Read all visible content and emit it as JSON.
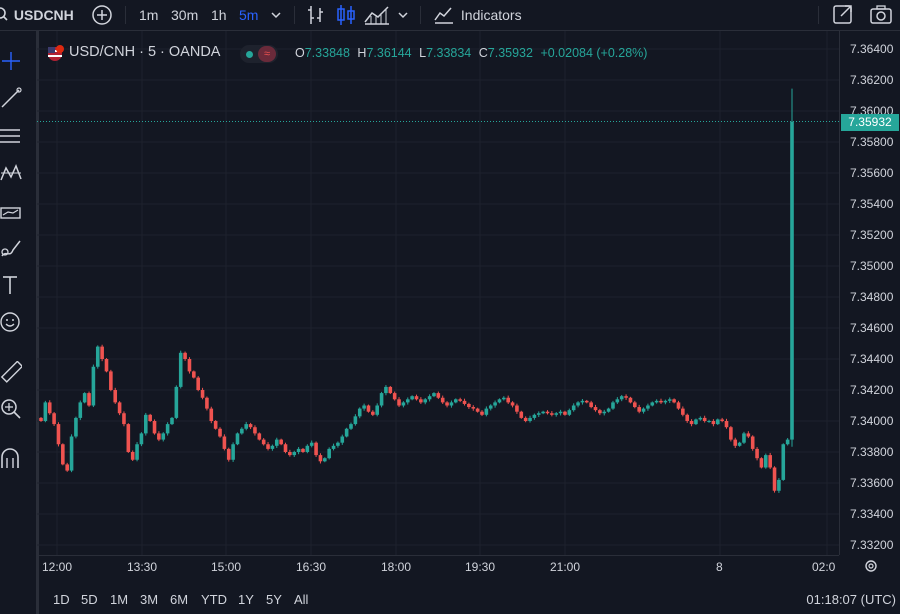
{
  "colors": {
    "up": "#26a69a",
    "down": "#ef5350",
    "bg": "#131722",
    "grid": "#1e222d",
    "text": "#d1d4dc",
    "accent": "#2962ff"
  },
  "toolbar": {
    "symbol": "USDCNH",
    "intervals": [
      {
        "label": "1m"
      },
      {
        "label": "30m"
      },
      {
        "label": "1h"
      },
      {
        "label": "5m",
        "active": true
      }
    ],
    "indicators_label": "Indicators",
    "icons": [
      "search-icon",
      "add-symbol-icon",
      "chevron-down-icon",
      "bar-style-icon",
      "candle-style-icon",
      "area-style-icon",
      "indicators-icon",
      "fullscreen-icon",
      "camera-icon"
    ]
  },
  "left_tools": [
    "crosshair-icon",
    "trend-line-icon",
    "horizontal-lines-icon",
    "pattern-icon",
    "forecast-icon",
    "brush-icon",
    "text-icon",
    "emoji-icon",
    "ruler-icon",
    "zoom-in-icon",
    "magnet-icon"
  ],
  "legend": {
    "symbol": "USD/CNH · 5 · OANDA",
    "open_label": "O",
    "open": "7.33848",
    "high_label": "H",
    "high": "7.36144",
    "low_label": "L",
    "low": "7.33834",
    "close_label": "C",
    "close": "7.35932",
    "change": "+0.02084 (+0.28%)"
  },
  "price_axis": {
    "labels": [
      "7.36400",
      "7.36200",
      "7.36000",
      "7.35800",
      "7.35600",
      "7.35400",
      "7.35200",
      "7.35000",
      "7.34800",
      "7.34600",
      "7.34400",
      "7.34200",
      "7.34000",
      "7.33800",
      "7.33600",
      "7.33400",
      "7.33200"
    ],
    "last_price": "7.35932"
  },
  "time_axis": {
    "labels": [
      "12:00",
      "13:30",
      "15:00",
      "16:30",
      "18:00",
      "19:30",
      "21:00",
      "8",
      "02:0"
    ]
  },
  "bottom_bar": {
    "ranges": [
      "1D",
      "5D",
      "1M",
      "3M",
      "6M",
      "YTD",
      "1Y",
      "5Y",
      "All"
    ],
    "clock": "01:18:07 (UTC)"
  },
  "chart_data": {
    "type": "candlestick",
    "ylim": [
      7.332,
      7.3645
    ],
    "last_close": 7.35932,
    "closes": [
      7.34,
      7.3412,
      7.3405,
      7.3398,
      7.3385,
      7.3372,
      7.3368,
      7.339,
      7.3402,
      7.3412,
      7.3418,
      7.341,
      7.3435,
      7.3448,
      7.344,
      7.3432,
      7.342,
      7.3412,
      7.3405,
      7.3398,
      7.338,
      7.3375,
      7.3385,
      7.3392,
      7.3404,
      7.34,
      7.3392,
      7.3388,
      7.3392,
      7.3398,
      7.3402,
      7.3422,
      7.3444,
      7.344,
      7.3432,
      7.3428,
      7.342,
      7.3415,
      7.3408,
      7.34,
      7.3395,
      7.339,
      7.3382,
      7.3375,
      7.3385,
      7.3392,
      7.3395,
      7.3398,
      7.3396,
      7.3392,
      7.3388,
      7.3385,
      7.3382,
      7.3384,
      7.3388,
      7.3385,
      7.338,
      7.3378,
      7.338,
      7.3382,
      7.338,
      7.3384,
      7.3386,
      7.3378,
      7.3374,
      7.3376,
      7.3382,
      7.3384,
      7.3386,
      7.339,
      7.3395,
      7.3398,
      7.3403,
      7.3408,
      7.341,
      7.3406,
      7.3404,
      7.341,
      7.3418,
      7.3422,
      7.3418,
      7.3414,
      7.341,
      7.3412,
      7.3414,
      7.3416,
      7.3414,
      7.3412,
      7.3414,
      7.3416,
      7.3418,
      7.3415,
      7.3412,
      7.341,
      7.3412,
      7.3414,
      7.3413,
      7.3411,
      7.3409,
      7.3408,
      7.3406,
      7.3404,
      7.3408,
      7.341,
      7.3412,
      7.3414,
      7.3415,
      7.3412,
      7.341,
      7.3406,
      7.3402,
      7.34,
      7.3402,
      7.3404,
      7.3405,
      7.3406,
      7.3405,
      7.3404,
      7.3405,
      7.3406,
      7.3404,
      7.3407,
      7.341,
      7.3412,
      7.3413,
      7.3412,
      7.3409,
      7.3407,
      7.3405,
      7.3406,
      7.3408,
      7.3412,
      7.3414,
      7.3416,
      7.3415,
      7.3412,
      7.3409,
      7.3406,
      7.3408,
      7.341,
      7.3412,
      7.3413,
      7.3412,
      7.3413,
      7.3414,
      7.3412,
      7.3408,
      7.3404,
      7.34,
      7.3398,
      7.3401,
      7.3402,
      7.34,
      7.34,
      7.3398,
      7.3401,
      7.34,
      7.3396,
      7.3388,
      7.3384,
      7.3386,
      7.3392,
      7.339,
      7.3382,
      7.3376,
      7.337,
      7.3378,
      7.337,
      7.3355,
      7.3362,
      7.3385,
      7.3388,
      7.3593
    ]
  }
}
